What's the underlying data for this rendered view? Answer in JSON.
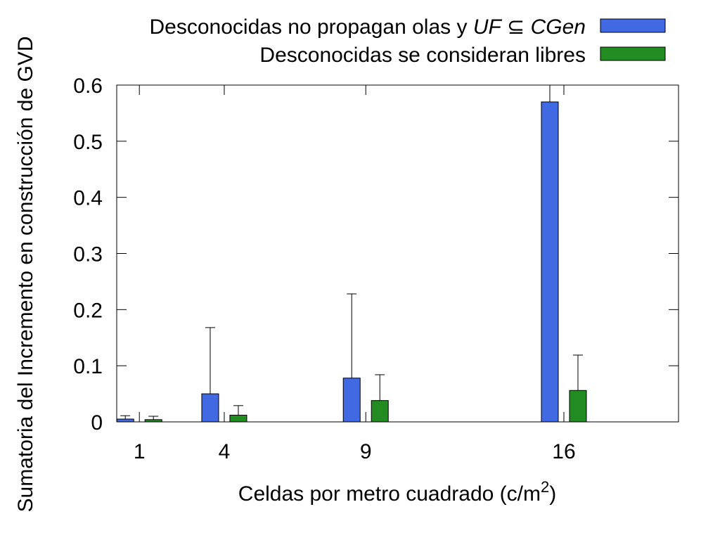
{
  "chart_data": {
    "type": "bar",
    "title": "",
    "xlabel": "Celdas por metro cuadrado (c/m",
    "xlabel_superscript": "2",
    "xlabel_suffix": ")",
    "ylabel": "Sumatoria del Incremento en construcción de GVD",
    "ylim": [
      0,
      0.6
    ],
    "yticks": [
      0,
      0.1,
      0.2,
      0.3,
      0.4,
      0.5,
      0.6
    ],
    "ytick_labels": [
      "0",
      "0.1",
      "0.2",
      "0.3",
      "0.4",
      "0.5",
      "0.6"
    ],
    "x_positions": [
      1,
      4,
      9,
      16
    ],
    "categories": [
      "1",
      "4",
      "9",
      "16"
    ],
    "grid": false,
    "legend_position": "top-right, outside plot",
    "series": [
      {
        "name_prefix": "Desconocidas no propagan olas y ",
        "name_math": [
          "UF",
          " ⊆ ",
          "CGen"
        ],
        "color": "#4169e1",
        "values": [
          0.005,
          0.05,
          0.078,
          0.57
        ],
        "error_upper": [
          0.011,
          0.168,
          0.228,
          0.6
        ]
      },
      {
        "name": "Desconocidas se consideran libres",
        "color": "#228b22",
        "values": [
          0.004,
          0.012,
          0.038,
          0.056
        ],
        "error_upper": [
          0.01,
          0.029,
          0.084,
          0.119
        ]
      }
    ]
  }
}
